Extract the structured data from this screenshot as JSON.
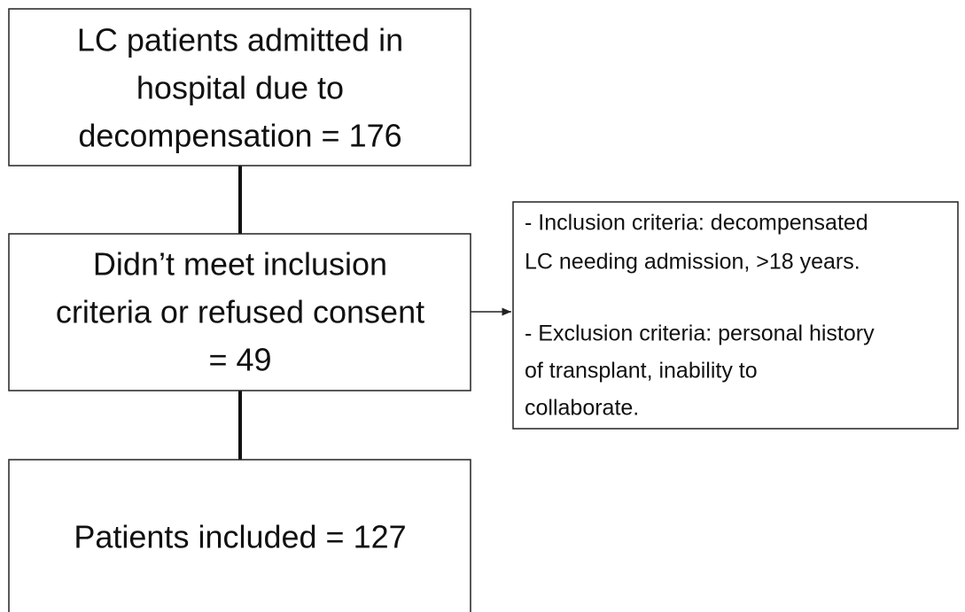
{
  "nodes": [
    {
      "lines": [
        "LC patients admitted in",
        "hospital due to",
        "decompensation = 176"
      ]
    },
    {
      "lines": [
        "Didn’t meet inclusion",
        "criteria or refused consent",
        "= 49"
      ]
    },
    {
      "lines": [
        "Patients included = 127"
      ]
    },
    {
      "lines": [
        "- Inclusion criteria: decompensated",
        "LC needing admission, >18 years.",
        "- Exclusion criteria: personal history",
        "of transplant, inability to",
        "collaborate."
      ]
    }
  ]
}
